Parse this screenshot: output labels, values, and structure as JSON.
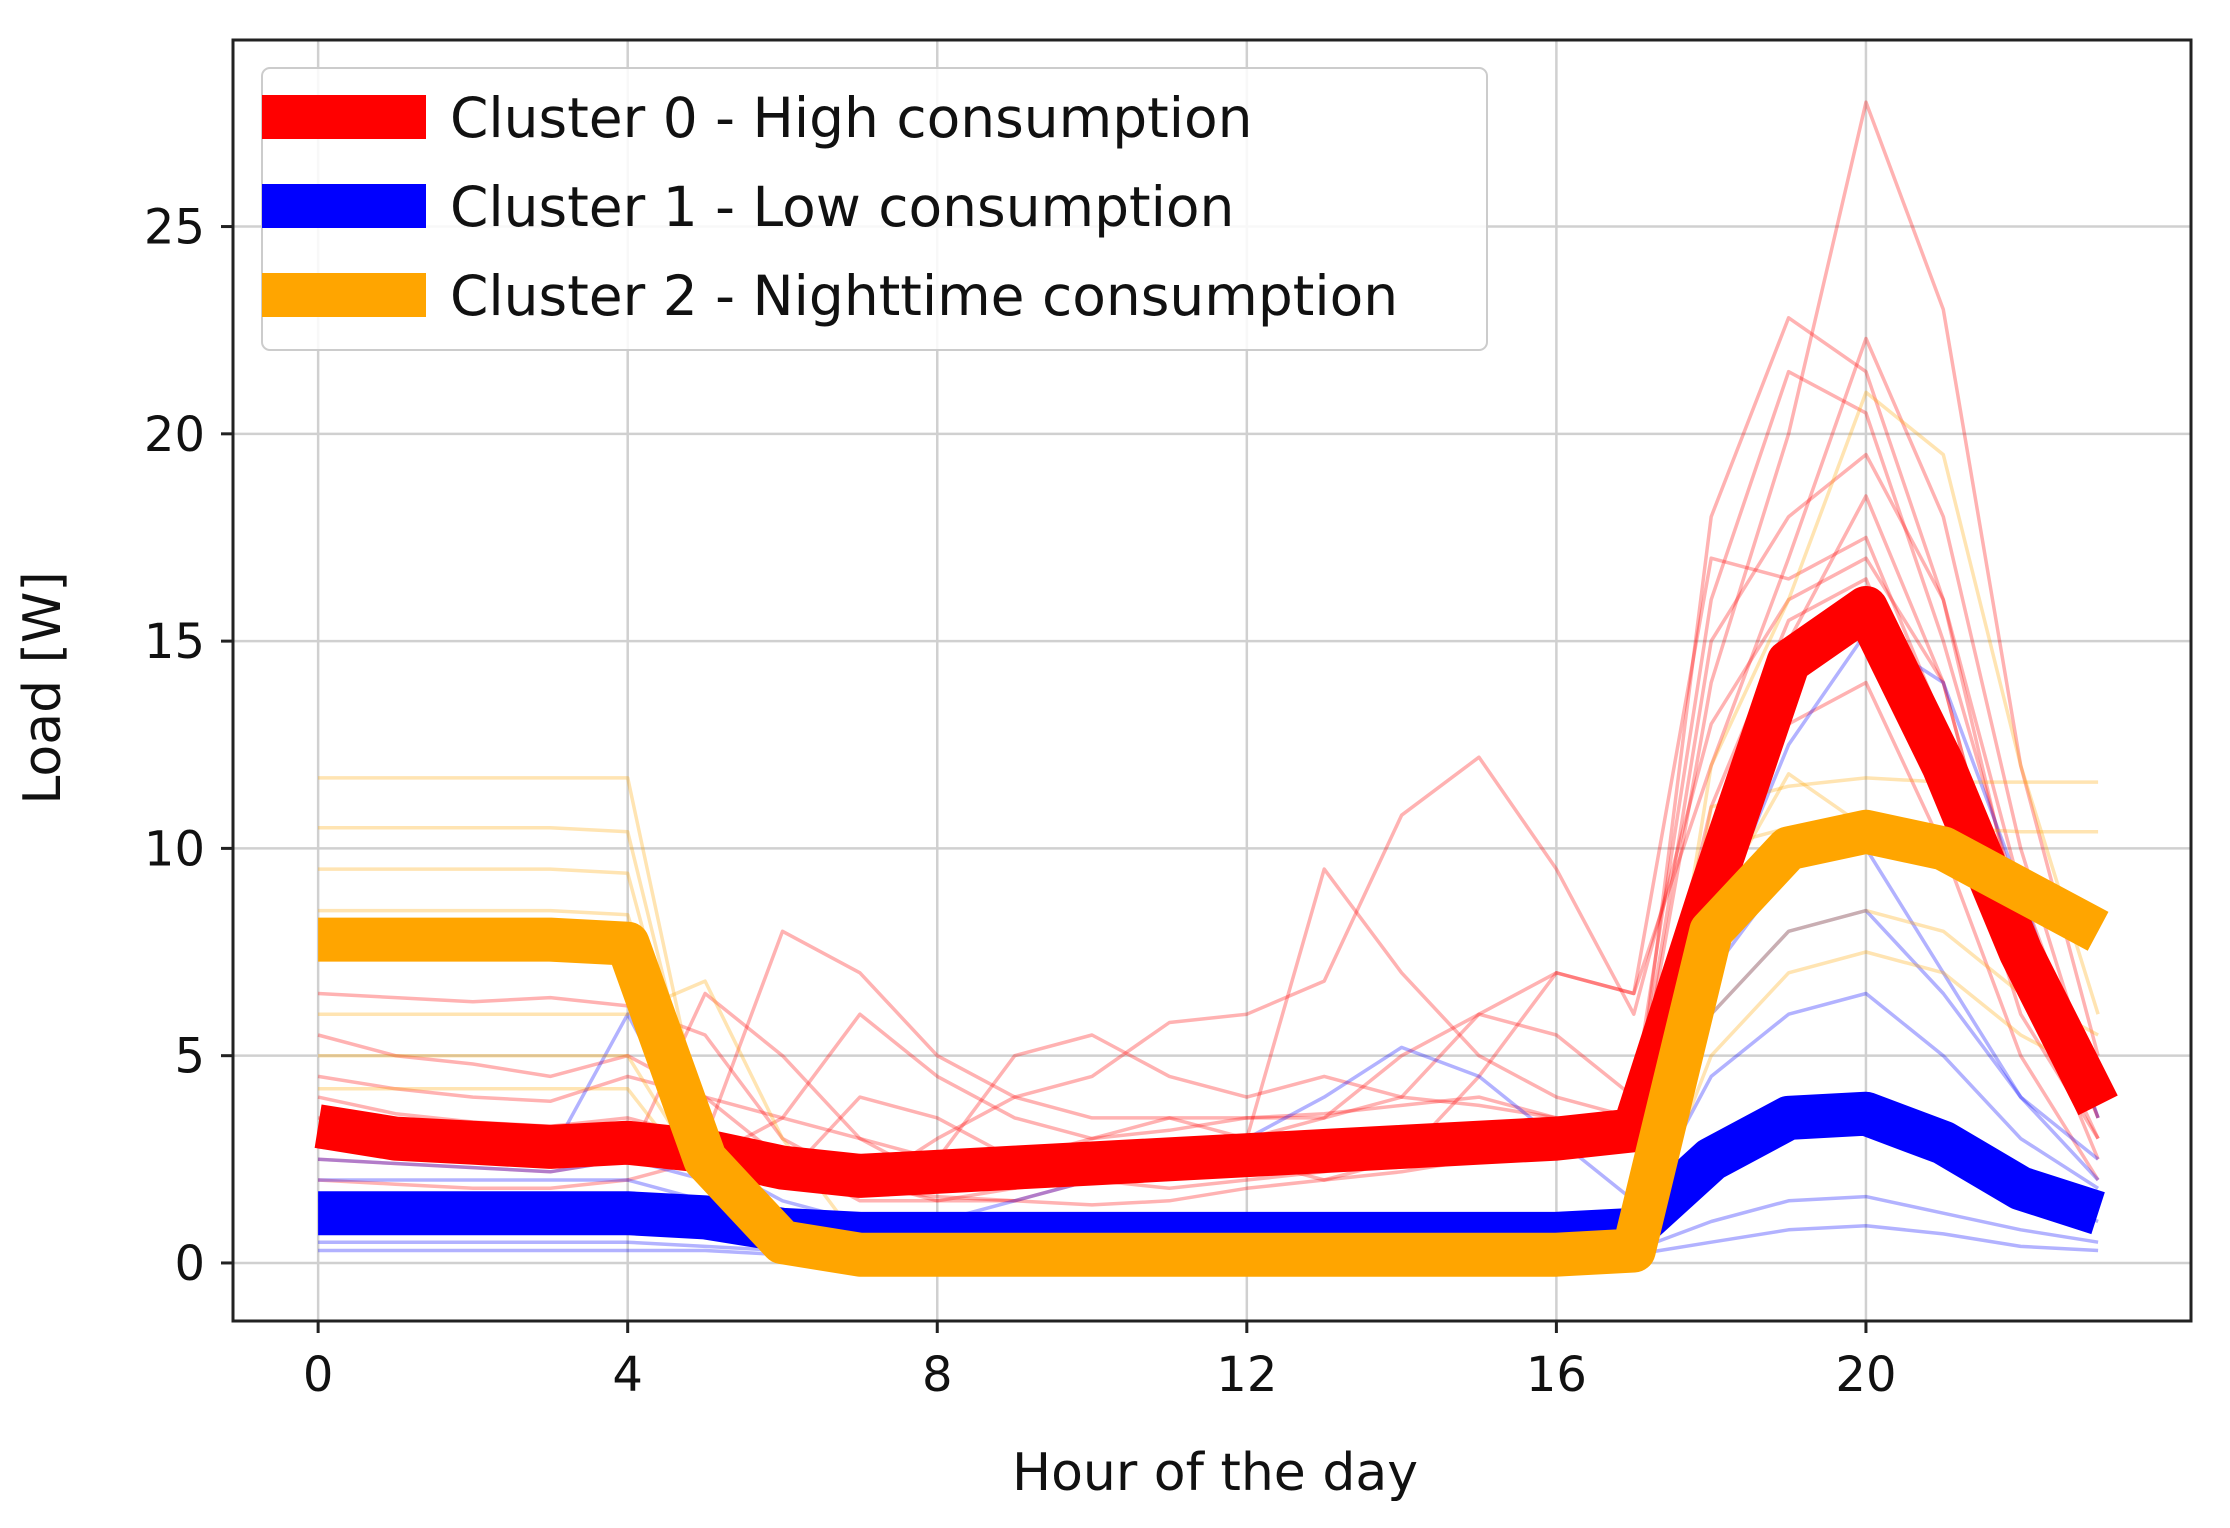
{
  "chart_data": {
    "type": "line",
    "title": "",
    "xlabel": "Hour of the day",
    "ylabel": "Load [W]",
    "xlim": [
      -1.1,
      24.2
    ],
    "ylim": [
      -1.4,
      29.5
    ],
    "xticks": [
      0,
      4,
      8,
      12,
      16,
      20
    ],
    "yticks": [
      0,
      5,
      10,
      15,
      20,
      25
    ],
    "grid": true,
    "legend_position": "top-left",
    "x": [
      0,
      1,
      2,
      3,
      4,
      5,
      6,
      7,
      8,
      9,
      10,
      11,
      12,
      13,
      14,
      15,
      16,
      17,
      18,
      19,
      20,
      21,
      22,
      23
    ],
    "series": [
      {
        "name": "Cluster 0 - High consumption",
        "color": "#ff0000",
        "values": [
          3.3,
          3.0,
          2.9,
          2.8,
          2.9,
          2.7,
          2.3,
          2.1,
          2.2,
          2.3,
          2.4,
          2.5,
          2.6,
          2.7,
          2.8,
          2.9,
          3.0,
          3.2,
          9.0,
          14.5,
          15.8,
          12.0,
          7.5,
          3.8
        ]
      },
      {
        "name": "Cluster 1 - Low consumption",
        "color": "#0000ff",
        "values": [
          1.2,
          1.2,
          1.2,
          1.2,
          1.2,
          1.1,
          0.8,
          0.7,
          0.7,
          0.7,
          0.7,
          0.7,
          0.7,
          0.7,
          0.7,
          0.7,
          0.7,
          0.8,
          2.5,
          3.5,
          3.6,
          2.9,
          1.8,
          1.2
        ]
      },
      {
        "name": "Cluster 2 - Nighttime consumption",
        "color": "#ffa500",
        "values": [
          7.8,
          7.8,
          7.8,
          7.8,
          7.7,
          2.5,
          0.5,
          0.2,
          0.2,
          0.2,
          0.2,
          0.2,
          0.2,
          0.2,
          0.2,
          0.2,
          0.2,
          0.3,
          8.0,
          10.0,
          10.4,
          10.0,
          9.0,
          8.0
        ]
      }
    ]
  },
  "individual_profiles": {
    "opacity": 0.3,
    "cluster_0": [
      [
        3.5,
        3.2,
        3.0,
        3.0,
        3.2,
        3.0,
        2.5,
        2.2,
        2.2,
        2.3,
        2.4,
        2.5,
        2.6,
        2.7,
        2.8,
        2.9,
        3.0,
        3.2,
        18.0,
        22.8,
        21.5,
        16.0,
        9.0,
        4.0
      ],
      [
        4.0,
        3.6,
        3.4,
        3.3,
        3.5,
        3.0,
        8.0,
        7.0,
        5.0,
        4.0,
        3.5,
        3.5,
        3.5,
        3.6,
        3.8,
        4.0,
        3.5,
        3.5,
        14.0,
        20.0,
        28.0,
        23.0,
        12.0,
        5.0
      ],
      [
        6.5,
        6.4,
        6.3,
        6.4,
        6.2,
        5.5,
        3.0,
        2.0,
        1.5,
        1.8,
        2.0,
        2.5,
        3.0,
        3.5,
        4.0,
        6.0,
        7.0,
        6.5,
        12.0,
        17.0,
        22.3,
        18.0,
        10.0,
        4.0
      ],
      [
        2.5,
        2.4,
        2.3,
        2.2,
        2.5,
        6.5,
        5.0,
        3.0,
        2.0,
        2.5,
        3.0,
        3.5,
        3.0,
        9.5,
        7.0,
        5.0,
        4.0,
        3.5,
        15.0,
        18.0,
        19.5,
        16.0,
        8.0,
        3.5
      ],
      [
        3.0,
        2.8,
        2.6,
        2.5,
        2.8,
        3.0,
        2.0,
        1.8,
        3.0,
        4.0,
        4.5,
        5.8,
        6.0,
        6.8,
        10.8,
        12.2,
        9.5,
        6.0,
        13.0,
        16.0,
        17.0,
        14.0,
        7.0,
        3.0
      ],
      [
        4.5,
        4.2,
        4.0,
        3.9,
        4.5,
        4.0,
        3.5,
        6.0,
        4.5,
        3.5,
        3.0,
        3.2,
        3.5,
        3.5,
        5.0,
        6.0,
        5.5,
        4.0,
        16.0,
        21.5,
        20.5,
        15.0,
        8.5,
        3.5
      ],
      [
        2.0,
        1.9,
        1.8,
        1.8,
        2.0,
        2.5,
        3.5,
        3.0,
        2.5,
        5.0,
        5.5,
        4.5,
        4.0,
        4.5,
        4.0,
        3.8,
        3.5,
        3.0,
        10.0,
        15.0,
        18.5,
        14.0,
        7.0,
        2.5
      ],
      [
        5.5,
        5.0,
        4.8,
        4.5,
        5.0,
        4.0,
        2.5,
        1.5,
        1.5,
        1.5,
        2.0,
        2.5,
        2.5,
        2.0,
        2.5,
        4.5,
        7.0,
        6.5,
        17.0,
        16.5,
        17.5,
        13.0,
        8.0,
        4.5
      ],
      [
        3.0,
        2.8,
        2.7,
        2.6,
        3.0,
        2.8,
        2.0,
        1.8,
        1.6,
        1.5,
        1.4,
        1.5,
        1.8,
        2.0,
        2.2,
        2.5,
        2.8,
        3.0,
        11.0,
        15.5,
        16.5,
        12.0,
        6.0,
        3.0
      ],
      [
        2.8,
        2.6,
        2.5,
        2.4,
        2.7,
        2.5,
        2.0,
        4.0,
        3.5,
        2.5,
        2.0,
        1.8,
        2.0,
        2.2,
        2.5,
        2.6,
        2.8,
        3.0,
        9.0,
        13.0,
        14.0,
        10.0,
        5.0,
        2.0
      ]
    ],
    "cluster_1": [
      [
        0.5,
        0.5,
        0.5,
        0.5,
        0.5,
        0.4,
        0.3,
        0.3,
        0.3,
        0.3,
        0.3,
        0.3,
        0.3,
        0.3,
        0.3,
        0.3,
        0.3,
        0.3,
        1.0,
        1.5,
        1.6,
        1.2,
        0.8,
        0.5
      ],
      [
        1.0,
        1.0,
        1.0,
        1.0,
        1.0,
        0.9,
        0.7,
        0.6,
        0.6,
        0.6,
        0.6,
        0.6,
        0.6,
        0.6,
        0.6,
        0.6,
        0.6,
        0.7,
        2.5,
        3.5,
        3.8,
        3.0,
        1.8,
        1.0
      ],
      [
        2.0,
        2.0,
        2.0,
        2.0,
        2.0,
        1.5,
        1.0,
        0.8,
        0.8,
        0.8,
        0.8,
        0.8,
        0.8,
        0.8,
        0.8,
        0.8,
        0.8,
        1.0,
        4.5,
        6.0,
        6.5,
        5.0,
        3.0,
        1.8
      ],
      [
        3.0,
        2.8,
        2.7,
        2.6,
        6.0,
        2.5,
        1.5,
        1.0,
        1.0,
        1.5,
        2.0,
        2.5,
        3.0,
        4.0,
        5.2,
        4.5,
        3.0,
        1.5,
        6.0,
        8.0,
        8.5,
        6.5,
        4.0,
        2.5
      ],
      [
        1.5,
        1.5,
        1.5,
        1.5,
        1.5,
        1.2,
        0.9,
        0.8,
        0.8,
        0.8,
        0.8,
        0.8,
        0.8,
        0.8,
        0.8,
        0.8,
        0.8,
        1.0,
        7.0,
        9.5,
        10.0,
        7.0,
        4.0,
        2.0
      ],
      [
        0.3,
        0.3,
        0.3,
        0.3,
        0.3,
        0.3,
        0.2,
        0.2,
        0.2,
        0.2,
        0.2,
        0.2,
        0.2,
        0.2,
        0.2,
        0.2,
        0.2,
        0.2,
        0.5,
        0.8,
        0.9,
        0.7,
        0.4,
        0.3
      ],
      [
        2.5,
        2.4,
        2.3,
        2.2,
        2.5,
        2.0,
        1.2,
        1.0,
        1.0,
        1.0,
        1.0,
        1.0,
        1.0,
        1.0,
        1.0,
        1.0,
        1.0,
        1.2,
        8.0,
        12.5,
        15.2,
        14.0,
        9.0,
        3.5
      ]
    ],
    "cluster_2": [
      [
        11.7,
        11.7,
        11.7,
        11.7,
        11.7,
        3.0,
        0.5,
        0.2,
        0.2,
        0.2,
        0.2,
        0.2,
        0.2,
        0.2,
        0.2,
        0.2,
        0.2,
        0.3,
        11.0,
        11.5,
        11.7,
        11.6,
        11.6,
        11.6
      ],
      [
        10.5,
        10.5,
        10.5,
        10.5,
        10.4,
        2.8,
        0.5,
        0.2,
        0.2,
        0.2,
        0.2,
        0.2,
        0.2,
        0.2,
        0.2,
        0.2,
        0.2,
        0.3,
        10.0,
        10.5,
        10.6,
        10.5,
        10.4,
        10.4
      ],
      [
        9.5,
        9.5,
        9.5,
        9.5,
        9.4,
        2.5,
        0.4,
        0.2,
        0.2,
        0.2,
        0.2,
        0.2,
        0.2,
        0.2,
        0.2,
        0.2,
        0.2,
        0.3,
        9.0,
        9.8,
        10.0,
        9.5,
        9.0,
        8.5
      ],
      [
        6.0,
        6.0,
        6.0,
        6.0,
        6.0,
        6.8,
        3.0,
        0.5,
        0.2,
        0.2,
        0.2,
        0.2,
        0.2,
        0.2,
        0.2,
        0.2,
        0.2,
        0.3,
        12.0,
        16.0,
        21.0,
        19.5,
        12.0,
        6.0
      ],
      [
        5.0,
        5.0,
        5.0,
        5.0,
        5.0,
        2.0,
        0.4,
        0.2,
        0.2,
        0.2,
        0.2,
        0.2,
        0.2,
        0.2,
        0.2,
        0.2,
        0.2,
        0.3,
        6.0,
        8.0,
        8.5,
        8.0,
        6.5,
        5.5
      ],
      [
        4.2,
        4.2,
        4.2,
        4.2,
        4.2,
        1.8,
        0.3,
        0.1,
        0.1,
        0.1,
        0.1,
        0.1,
        0.1,
        0.1,
        0.1,
        0.1,
        0.1,
        0.2,
        5.0,
        7.0,
        7.5,
        7.0,
        5.5,
        4.5
      ],
      [
        8.5,
        8.5,
        8.5,
        8.5,
        8.4,
        2.5,
        0.4,
        0.2,
        0.2,
        0.2,
        0.2,
        0.2,
        0.2,
        0.2,
        0.2,
        0.2,
        0.2,
        0.3,
        8.5,
        11.8,
        10.5,
        10.0,
        9.0,
        8.0
      ]
    ]
  }
}
